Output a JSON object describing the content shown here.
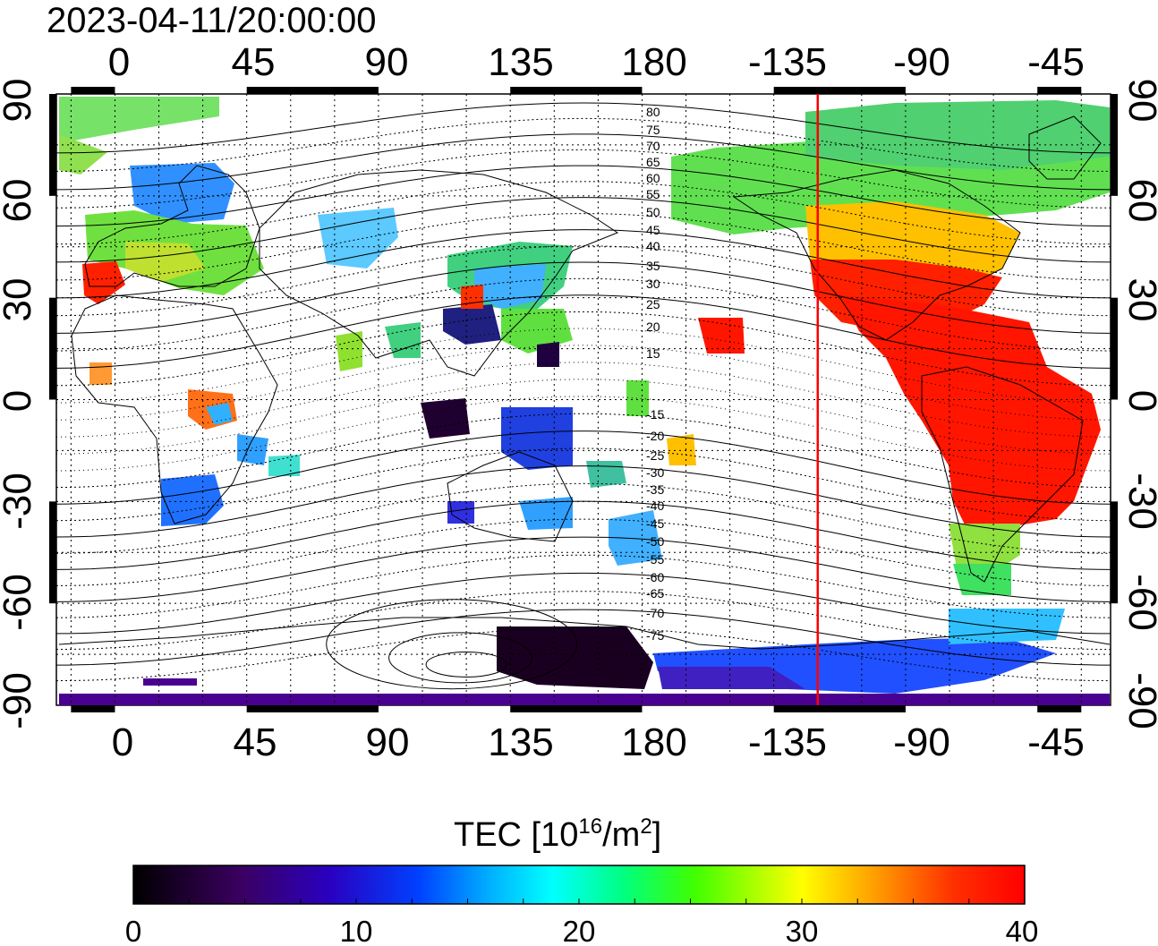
{
  "timestamp": "2023-04-11/20:00:00",
  "map": {
    "top_lon_ticks": [
      "0",
      "45",
      "90",
      "135",
      "180",
      "-135",
      "-90",
      "-45"
    ],
    "bottom_lon_ticks": [
      "0",
      "45",
      "90",
      "135",
      "180",
      "-135",
      "-90",
      "-45"
    ],
    "left_lat_ticks": [
      "90",
      "60",
      "30",
      "0",
      "-30",
      "-60",
      "-90"
    ],
    "right_lat_ticks": [
      "90",
      "60",
      "30",
      "0",
      "-30",
      "-60",
      "-90"
    ],
    "lon_range": [
      -20,
      340
    ],
    "lat_range": [
      -90,
      90
    ],
    "grid": "dotted, 15 degree spacing",
    "terminator_marker_lon": -120,
    "terminator_marker_color": "#ff0000",
    "contour_labels_north": [
      "80",
      "75",
      "70",
      "65",
      "60",
      "55",
      "50",
      "45",
      "40",
      "35",
      "30",
      "25",
      "20",
      "15"
    ],
    "contour_labels_south": [
      "-15",
      "-20",
      "-25",
      "-30",
      "-35",
      "-40",
      "-45",
      "-50",
      "-55",
      "-60",
      "-65",
      "-70",
      "-75"
    ]
  },
  "colorbar": {
    "title_main": "TEC  [10",
    "title_sup1": "16",
    "title_mid": "/m",
    "title_sup2": "2",
    "title_end": "]",
    "tick_labels": [
      "0",
      "10",
      "20",
      "30",
      "40"
    ],
    "range": [
      0,
      40
    ],
    "colormap": "black-purple-blue-cyan-green-yellow-orange-red"
  },
  "colors": {
    "low": "#000000",
    "purple": "#4b0082",
    "blue": "#0000ff",
    "cyan": "#00ffff",
    "green": "#00e000",
    "yellow": "#ffff00",
    "orange": "#ff8000",
    "high": "#ff0000"
  }
}
